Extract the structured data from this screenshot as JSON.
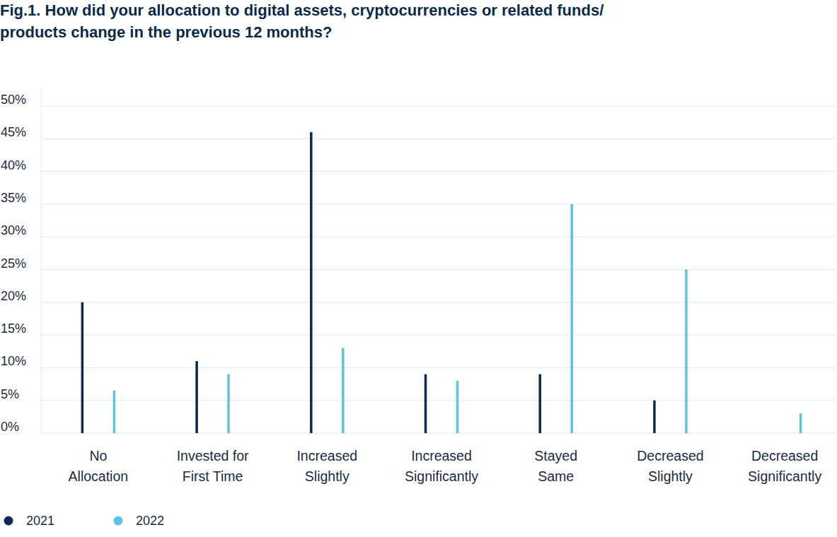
{
  "chart_data": {
    "type": "bar",
    "title": "Fig.1. How did your allocation to digital assets, cryptocurrencies or related funds/\nproducts change in the previous 12 months?",
    "categories": [
      "No\nAllocation",
      "Invested for\nFirst Time",
      "Increased\nSlightly",
      "Increased\nSignificantly",
      "Stayed\nSame",
      "Decreased\nSlightly",
      "Decreased\nSignificantly"
    ],
    "series": [
      {
        "name": "2021",
        "color": "#0a2a4f",
        "values": [
          20,
          11,
          46,
          9,
          9,
          5,
          0
        ]
      },
      {
        "name": "2022",
        "color": "#5bc4e1",
        "values": [
          6.5,
          9,
          13,
          8,
          35,
          25,
          3
        ]
      }
    ],
    "ylim": [
      0,
      50
    ],
    "yticks": [
      {
        "value": 0,
        "label": "0%"
      },
      {
        "value": 5,
        "label": "5%"
      },
      {
        "value": 10,
        "label": "10%"
      },
      {
        "value": 15,
        "label": "15%"
      },
      {
        "value": 20,
        "label": "20%"
      },
      {
        "value": 25,
        "label": "25%"
      },
      {
        "value": 30,
        "label": "30%"
      },
      {
        "value": 35,
        "label": "35%"
      },
      {
        "value": 40,
        "label": "40%"
      },
      {
        "value": 45,
        "label": "45%"
      },
      {
        "value": 50,
        "label": "50%"
      }
    ],
    "grid": true,
    "legend": "bottom-left"
  }
}
